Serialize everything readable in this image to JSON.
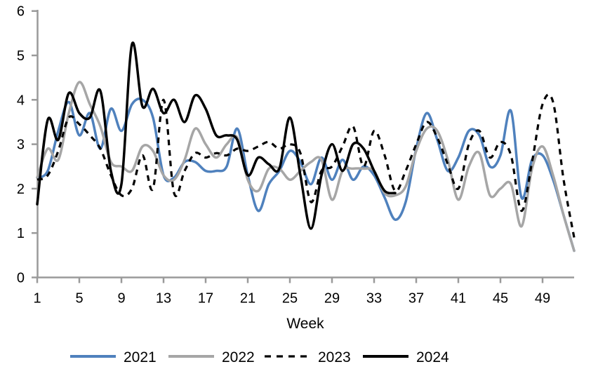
{
  "chart_data": {
    "type": "line",
    "title": "",
    "xlabel": "Week",
    "ylabel": "",
    "grid": false,
    "legend_position": "bottom",
    "x_axis": {
      "ticks": [
        1,
        5,
        9,
        13,
        17,
        21,
        25,
        29,
        33,
        37,
        41,
        45,
        49
      ],
      "range": [
        1,
        52
      ]
    },
    "y_axis": {
      "ticks": [
        0,
        1,
        2,
        3,
        4,
        5,
        6
      ],
      "range": [
        0,
        6
      ]
    },
    "x_start_week": 1,
    "series": [
      {
        "name": "2021",
        "color": "#4F81BD",
        "style": "solid",
        "values": [
          2.25,
          2.4,
          3.3,
          3.95,
          3.2,
          3.7,
          2.9,
          3.8,
          3.3,
          3.9,
          4.0,
          3.6,
          2.3,
          2.25,
          2.6,
          2.6,
          2.4,
          2.4,
          2.5,
          3.35,
          2.3,
          1.5,
          2.1,
          2.4,
          2.85,
          2.6,
          2.1,
          2.7,
          2.2,
          2.65,
          2.2,
          2.5,
          2.3,
          1.8,
          1.3,
          1.7,
          2.9,
          3.7,
          3.1,
          2.4,
          2.7,
          3.3,
          3.2,
          2.5,
          2.75,
          3.75,
          1.8,
          2.65,
          2.75,
          2.2,
          1.4,
          0.6
        ]
      },
      {
        "name": "2022",
        "color": "#A6A6A6",
        "style": "solid",
        "values": [
          2.25,
          2.9,
          2.65,
          3.7,
          4.4,
          3.9,
          3.4,
          2.6,
          2.5,
          2.4,
          2.95,
          2.85,
          2.3,
          2.2,
          2.65,
          3.35,
          3.0,
          2.7,
          3.0,
          3.15,
          2.2,
          1.95,
          2.45,
          2.45,
          2.2,
          2.4,
          2.6,
          2.65,
          1.75,
          2.4,
          2.45,
          2.45,
          2.4,
          1.9,
          1.85,
          2.05,
          2.85,
          3.35,
          3.3,
          2.65,
          1.75,
          2.5,
          2.8,
          1.85,
          2.0,
          2.1,
          1.15,
          2.45,
          2.95,
          2.3,
          1.4,
          0.6
        ]
      },
      {
        "name": "2023",
        "color": "#000000",
        "style": "dashed",
        "values": [
          2.2,
          2.3,
          2.85,
          3.6,
          3.45,
          3.2,
          2.9,
          2.3,
          1.85,
          2.0,
          2.75,
          2.0,
          4.0,
          1.9,
          2.4,
          2.8,
          2.7,
          2.8,
          2.75,
          2.9,
          2.85,
          2.95,
          3.05,
          2.9,
          3.0,
          2.8,
          1.7,
          2.4,
          2.5,
          2.95,
          3.4,
          2.5,
          3.3,
          2.75,
          1.95,
          2.4,
          3.0,
          3.5,
          3.15,
          2.55,
          2.0,
          3.0,
          3.3,
          2.7,
          3.05,
          2.75,
          1.5,
          2.6,
          3.9,
          3.95,
          2.2,
          0.9
        ]
      },
      {
        "name": "2024",
        "color": "#000000",
        "style": "solid",
        "values": [
          1.65,
          3.55,
          3.1,
          4.15,
          3.7,
          3.6,
          4.2,
          2.4,
          2.1,
          5.25,
          3.85,
          4.25,
          3.7,
          4.0,
          3.5,
          4.1,
          3.8,
          3.2,
          3.2,
          3.1,
          2.3,
          2.7,
          2.55,
          2.45,
          3.6,
          2.3,
          1.1,
          2.3,
          3.0,
          2.4,
          3.0,
          2.9,
          2.4,
          1.95,
          1.9,
          null,
          null,
          null,
          null,
          null,
          null,
          null,
          null,
          null,
          null,
          null,
          null,
          null,
          null,
          null,
          null,
          null
        ]
      }
    ],
    "colors": {
      "axis": "#9A9A9A",
      "text": "#000000",
      "background": "#FFFFFF"
    }
  }
}
